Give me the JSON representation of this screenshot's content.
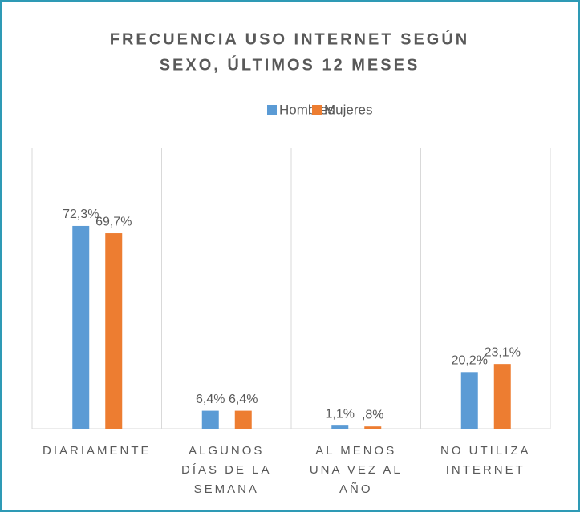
{
  "chart_data": {
    "type": "bar",
    "title": [
      "FRECUENCIA USO INTERNET SEGÚN",
      "SEXO, ÚLTIMOS 12 MESES"
    ],
    "categories": [
      [
        "DIARIAMENTE"
      ],
      [
        "ALGUNOS",
        "DÍAS DE LA",
        "SEMANA"
      ],
      [
        "AL MENOS",
        "UNA VEZ AL",
        "AÑO"
      ],
      [
        "NO UTILIZA",
        "INTERNET"
      ]
    ],
    "series": [
      {
        "name": "Hombres",
        "color": "#5b9bd5",
        "values": [
          72.3,
          6.4,
          1.1,
          20.2
        ],
        "value_labels": [
          "72,3%",
          "6,4%",
          "1,1%",
          "20,2%"
        ]
      },
      {
        "name": "Mujeres",
        "color": "#ed7d31",
        "values": [
          69.7,
          6.4,
          0.8,
          23.1
        ],
        "value_labels": [
          "69,7%",
          "6,4%",
          ",8%",
          "23,1%"
        ]
      }
    ],
    "ylim": [
      0,
      100
    ]
  }
}
